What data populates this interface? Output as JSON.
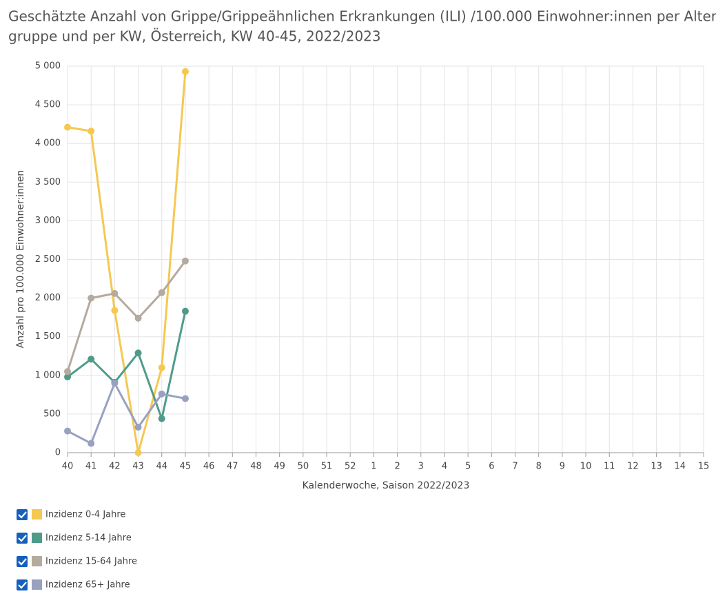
{
  "chart_data": {
    "type": "line",
    "title": [
      "Geschätzte Anzahl von Grippe/Grippeähnlichen Erkrankungen (ILI) /100.000 Einwohner:innen per Alters-",
      "gruppe und per KW, Österreich, KW 40-45, 2022/2023"
    ],
    "y_label": "Anzahl pro 100.000 Einwohner:innen",
    "x_label": "Kalenderwoche, Saison 2022/2023",
    "categories": [
      "40",
      "41",
      "42",
      "43",
      "44",
      "45",
      "46",
      "47",
      "48",
      "49",
      "50",
      "51",
      "52",
      "1",
      "2",
      "3",
      "4",
      "5",
      "6",
      "7",
      "8",
      "9",
      "10",
      "11",
      "12",
      "13",
      "14",
      "15"
    ],
    "series": [
      {
        "name": "Inzidenz 0-4 Jahre",
        "color": "#f5c851",
        "values": [
          4210,
          4160,
          1840,
          0,
          1100,
          4930,
          null,
          null,
          null,
          null,
          null,
          null,
          null,
          null,
          null,
          null,
          null,
          null,
          null,
          null,
          null,
          null,
          null,
          null,
          null,
          null,
          null,
          null
        ]
      },
      {
        "name": "Inzidenz 5-14 Jahre",
        "color": "#4f9b8a",
        "values": [
          980,
          1210,
          910,
          1290,
          440,
          1830,
          null,
          null,
          null,
          null,
          null,
          null,
          null,
          null,
          null,
          null,
          null,
          null,
          null,
          null,
          null,
          null,
          null,
          null,
          null,
          null,
          null,
          null
        ]
      },
      {
        "name": "Inzidenz 15-64 Jahre",
        "color": "#b4aa9d",
        "values": [
          1050,
          2000,
          2060,
          1740,
          2070,
          2480,
          null,
          null,
          null,
          null,
          null,
          null,
          null,
          null,
          null,
          null,
          null,
          null,
          null,
          null,
          null,
          null,
          null,
          null,
          null,
          null,
          null,
          null
        ]
      },
      {
        "name": "Inzidenz 65+ Jahre",
        "color": "#98a1c0",
        "values": [
          280,
          120,
          900,
          330,
          760,
          700,
          null,
          null,
          null,
          null,
          null,
          null,
          null,
          null,
          null,
          null,
          null,
          null,
          null,
          null,
          null,
          null,
          null,
          null,
          null,
          null,
          null,
          null
        ]
      }
    ],
    "ylim": [
      0,
      5000
    ],
    "yticks": [
      0,
      500,
      {
        "value": 1000,
        "label": "1 000"
      },
      {
        "value": 1500,
        "label": "1 500"
      },
      {
        "value": 2000,
        "label": "2 000"
      },
      {
        "value": 2500,
        "label": "2 500"
      },
      {
        "value": 3000,
        "label": "3 000"
      },
      {
        "value": 3500,
        "label": "3 500"
      },
      {
        "value": 4000,
        "label": "4 000"
      },
      {
        "value": 4500,
        "label": "4 500"
      },
      {
        "value": 5000,
        "label": "5 000"
      }
    ],
    "grid": true
  }
}
